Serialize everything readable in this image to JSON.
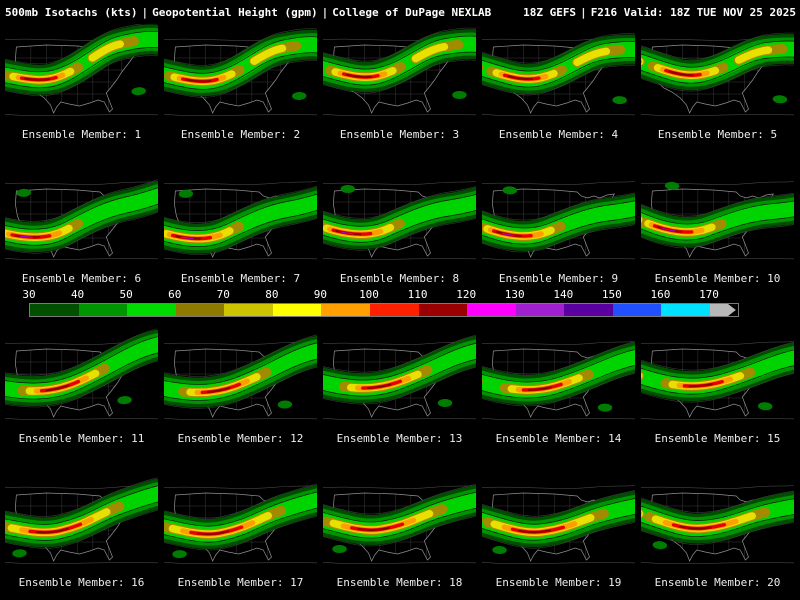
{
  "header": {
    "left_parts": [
      "500mb Isotachs (kts)",
      "Geopotential Height (gpm)",
      "College of DuPage NEXLAB"
    ],
    "right_parts": [
      "18Z GEFS",
      "F216 Valid: 18Z TUE NOV 25 2025"
    ],
    "separator": "|"
  },
  "colorbar": {
    "unit": "kts",
    "ticks": [
      "30",
      "40",
      "50",
      "60",
      "70",
      "80",
      "90",
      "100",
      "110",
      "120",
      "130",
      "140",
      "150",
      "160",
      "170"
    ],
    "colors": [
      "#005000",
      "#009600",
      "#00db00",
      "#8f7a00",
      "#cfc400",
      "#ffff00",
      "#ff9f00",
      "#ff2000",
      "#9b0000",
      "#ff00ff",
      "#a020d0",
      "#5a00a0",
      "#2050ff",
      "#00e0ff"
    ],
    "overflow_color": "#b8b8b8"
  },
  "panels": [
    {
      "label": "Ensemble Member: 1"
    },
    {
      "label": "Ensemble Member: 2"
    },
    {
      "label": "Ensemble Member: 3"
    },
    {
      "label": "Ensemble Member: 4"
    },
    {
      "label": "Ensemble Member: 5"
    },
    {
      "label": "Ensemble Member: 6"
    },
    {
      "label": "Ensemble Member: 7"
    },
    {
      "label": "Ensemble Member: 8"
    },
    {
      "label": "Ensemble Member: 9"
    },
    {
      "label": "Ensemble Member: 10"
    },
    {
      "label": "Ensemble Member: 11"
    },
    {
      "label": "Ensemble Member: 12"
    },
    {
      "label": "Ensemble Member: 13"
    },
    {
      "label": "Ensemble Member: 14"
    },
    {
      "label": "Ensemble Member: 15"
    },
    {
      "label": "Ensemble Member: 16"
    },
    {
      "label": "Ensemble Member: 17"
    },
    {
      "label": "Ensemble Member: 18"
    },
    {
      "label": "Ensemble Member: 19"
    },
    {
      "label": "Ensemble Member: 20"
    }
  ],
  "colors": {
    "background": "#000000",
    "text": "#ffffff",
    "label_text": "#ededed"
  }
}
